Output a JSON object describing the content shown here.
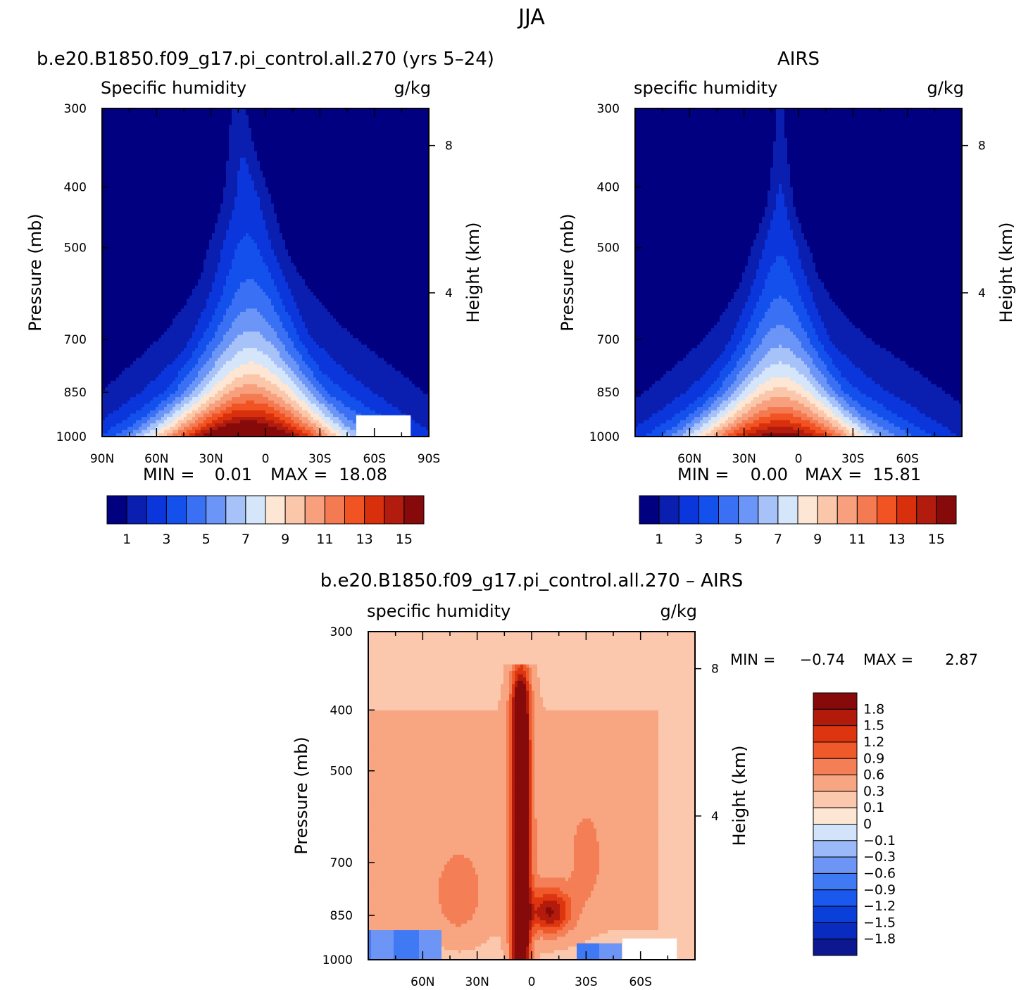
{
  "figure": {
    "season": "JJA"
  },
  "colors": {
    "humidity_levels": [
      "#000080",
      "#0a1fb0",
      "#0b36dc",
      "#1350ec",
      "#3a70f4",
      "#6b95f6",
      "#a6c2f9",
      "#d5e6fb",
      "#fde6d3",
      "#fbc7ab",
      "#f8a07d",
      "#f47a52",
      "#f15323",
      "#d8300c",
      "#b11c0e",
      "#860a0a"
    ],
    "difference_levels": [
      "#0d1790",
      "#0a2bbf",
      "#0b3fd9",
      "#1a58ee",
      "#3f79f4",
      "#6c95f6",
      "#9bb8f8",
      "#d3e4fa",
      "#fde6d3",
      "#fbc8ad",
      "#f8a581",
      "#f47e55",
      "#f05a2b",
      "#dd3510",
      "#b21b0c",
      "#860a0a"
    ]
  },
  "chart_data": [
    {
      "type": "heatmap",
      "panel": "model",
      "title": "b.e20.B1850.f09_g17.pi_control.all.270 (yrs 5–24)",
      "field_label": "Specific humidity",
      "units": "g/kg",
      "ylabel": "Pressure (mb)",
      "y2label": "Height (km)",
      "pressure_ticks": [
        "300",
        "400",
        "500",
        "700",
        "850",
        "1000"
      ],
      "pressure_values": [
        300,
        400,
        500,
        700,
        850,
        1000
      ],
      "height_ticks": [
        "8",
        "4"
      ],
      "height_values": [
        8,
        4
      ],
      "lat_ticks": [
        "90N",
        "60N",
        "30N",
        "0",
        "30S",
        "60S",
        "90S"
      ],
      "lat_values": [
        90,
        60,
        30,
        0,
        -30,
        -60,
        -90
      ],
      "xlim": [
        90,
        -90
      ],
      "ylim": [
        300,
        1000
      ],
      "stats": {
        "min_label": "MIN =",
        "min": "0.01",
        "max_label": "MAX =",
        "max": "18.08"
      },
      "levels": [
        1,
        2,
        3,
        4,
        5,
        6,
        7,
        8,
        9,
        10,
        11,
        12,
        13,
        14,
        15
      ],
      "colorbar_labels": [
        "1",
        "3",
        "5",
        "7",
        "9",
        "11",
        "13",
        "15"
      ],
      "peak_latitude": 10,
      "peak_value": 18.08,
      "surface_value": 9,
      "profile": [
        {
          "p": 300,
          "lat": 15,
          "hw": 4
        },
        {
          "p": 420,
          "lat": 10,
          "hw": 10
        },
        {
          "p": 500,
          "lat": 10,
          "hw": 14
        },
        {
          "p": 600,
          "lat": 8,
          "hw": 18
        },
        {
          "p": 700,
          "lat": 8,
          "hw": 22
        },
        {
          "p": 850,
          "lat": 8,
          "hw": 30
        },
        {
          "p": 1000,
          "lat": 10,
          "hw": 42
        }
      ]
    },
    {
      "type": "heatmap",
      "panel": "obs",
      "title": "AIRS",
      "field_label": "specific humidity",
      "units": "g/kg",
      "ylabel": "Pressure (mb)",
      "y2label": "Height (km)",
      "pressure_ticks": [
        "300",
        "400",
        "500",
        "700",
        "850",
        "1000"
      ],
      "pressure_values": [
        300,
        400,
        500,
        700,
        850,
        1000
      ],
      "height_ticks": [
        "8",
        "4"
      ],
      "height_values": [
        8,
        4
      ],
      "lat_ticks": [
        "60N",
        "30N",
        "0",
        "30S",
        "60S"
      ],
      "lat_values": [
        60,
        30,
        0,
        -30,
        -60
      ],
      "xlim": [
        90,
        -90
      ],
      "ylim": [
        300,
        1000
      ],
      "stats": {
        "min_label": "MIN =",
        "min": "0.00",
        "max_label": "MAX =",
        "max": "15.81"
      },
      "levels": [
        1,
        2,
        3,
        4,
        5,
        6,
        7,
        8,
        9,
        10,
        11,
        12,
        13,
        14,
        15
      ],
      "colorbar_labels": [
        "1",
        "3",
        "5",
        "7",
        "9",
        "11",
        "13",
        "15"
      ],
      "peak_latitude": 10,
      "peak_value": 15.81,
      "surface_value": 8,
      "profile": [
        {
          "p": 300,
          "lat": 10,
          "hw": 2
        },
        {
          "p": 430,
          "lat": 10,
          "hw": 6
        },
        {
          "p": 500,
          "lat": 10,
          "hw": 11
        },
        {
          "p": 600,
          "lat": 10,
          "hw": 15
        },
        {
          "p": 700,
          "lat": 10,
          "hw": 19
        },
        {
          "p": 850,
          "lat": 10,
          "hw": 27
        },
        {
          "p": 1000,
          "lat": 10,
          "hw": 40
        }
      ]
    },
    {
      "type": "heatmap",
      "panel": "difference",
      "title": "b.e20.B1850.f09_g17.pi_control.all.270 – AIRS",
      "field_label": "specific humidity",
      "units": "g/kg",
      "ylabel": "Pressure (mb)",
      "y2label": "Height (km)",
      "pressure_ticks": [
        "300",
        "400",
        "500",
        "700",
        "850",
        "1000"
      ],
      "pressure_values": [
        300,
        400,
        500,
        700,
        850,
        1000
      ],
      "height_ticks": [
        "8",
        "4"
      ],
      "height_values": [
        8,
        4
      ],
      "lat_ticks": [
        "60N",
        "30N",
        "0",
        "30S",
        "60S"
      ],
      "lat_values": [
        60,
        30,
        0,
        -30,
        -60
      ],
      "xlim": [
        90,
        -90
      ],
      "ylim": [
        300,
        1000
      ],
      "stats": {
        "min_label": "MIN =",
        "min": "−0.74",
        "max_label": "MAX =",
        "max": "2.87"
      },
      "levels": [
        -1.8,
        -1.5,
        -1.2,
        -0.9,
        -0.6,
        -0.3,
        -0.1,
        0,
        0.1,
        0.3,
        0.6,
        0.9,
        1.2,
        1.5,
        1.8
      ],
      "colorbar_labels": [
        "1.8",
        "1.5",
        "1.2",
        "0.9",
        "0.6",
        "0.3",
        "0.1",
        "0",
        "−0.1",
        "−0.3",
        "−0.6",
        "−0.9",
        "−1.2",
        "−1.5",
        "−1.8"
      ],
      "features": [
        {
          "kind": "core",
          "lat": 6,
          "p_top": 400,
          "p_bottom": 1000,
          "value": 2.87
        },
        {
          "kind": "lobe",
          "lat": -10,
          "p": 840,
          "value": 2.0
        },
        {
          "kind": "low_level_negative",
          "lat_from": 90,
          "lat_to": 50,
          "p_from": 900,
          "p_to": 1000,
          "value": -0.6
        },
        {
          "kind": "low_level_negative",
          "lat_from": -25,
          "lat_to": -50,
          "p_from": 940,
          "p_to": 1000,
          "value": -0.6
        }
      ]
    }
  ]
}
